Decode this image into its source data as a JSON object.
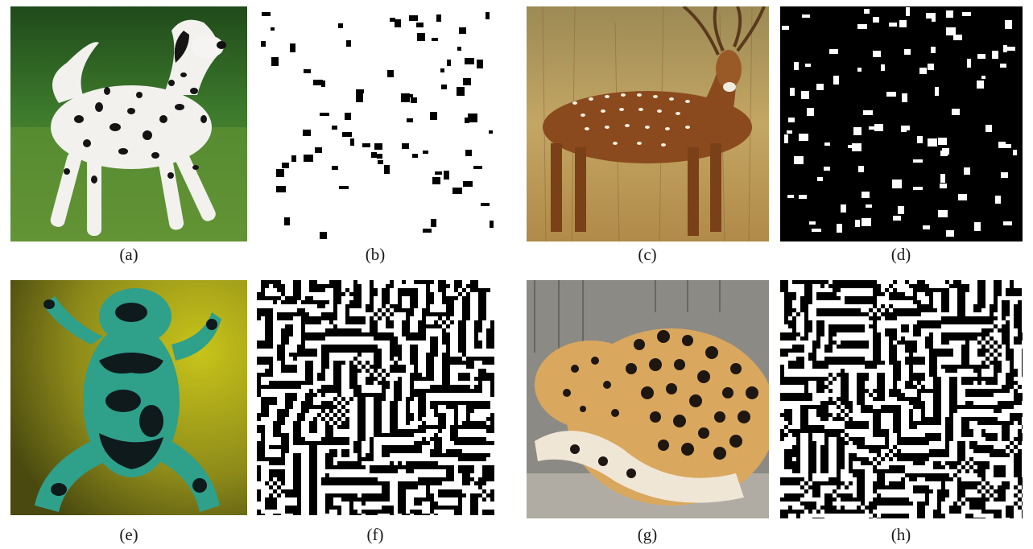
{
  "figure": {
    "panels": [
      {
        "label": "(a)",
        "kind": "photo",
        "subject": "dalmatian dog",
        "colors": {
          "bg": "#3f7a2c",
          "body": "#f2f1ee",
          "spots": "#141414"
        }
      },
      {
        "label": "(b)",
        "kind": "binary pattern",
        "style": "sparse black spots on white",
        "colors": {
          "bg": "#ffffff",
          "fg": "#000000"
        }
      },
      {
        "label": "(c)",
        "kind": "photo",
        "subject": "spotted deer",
        "colors": {
          "bg": "#b99a5a",
          "body": "#8a4a1e",
          "spots": "#f4efe0"
        }
      },
      {
        "label": "(d)",
        "kind": "binary pattern",
        "style": "sparse white spots on black",
        "colors": {
          "bg": "#000000",
          "fg": "#ffffff"
        }
      },
      {
        "label": "(e)",
        "kind": "photo",
        "subject": "poison dart frog",
        "colors": {
          "bg": "#a9a41c",
          "body": "#2fa08a",
          "spots": "#0e1a1c"
        }
      },
      {
        "label": "(f)",
        "kind": "binary pattern",
        "style": "dense labyrinth stripes",
        "colors": {
          "bg": "#000000",
          "fg": "#ffffff"
        }
      },
      {
        "label": "(g)",
        "kind": "photo",
        "subject": "leopard",
        "colors": {
          "bg": "#8c8a84",
          "body": "#d9a75e",
          "spots": "#1e1611"
        }
      },
      {
        "label": "(h)",
        "kind": "binary pattern",
        "style": "dense labyrinth stripes",
        "colors": {
          "bg": "#ffffff",
          "fg": "#000000"
        }
      }
    ]
  }
}
